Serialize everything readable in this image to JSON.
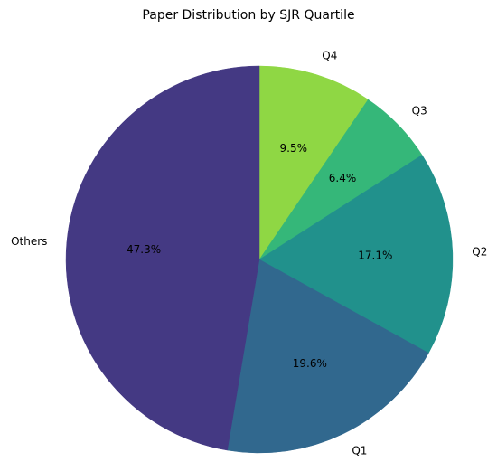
{
  "chart_data": {
    "type": "pie",
    "title": "Paper Distribution by SJR Quartile",
    "categories": [
      "Q4",
      "Q3",
      "Q2",
      "Q1",
      "Others"
    ],
    "values": [
      9.5,
      6.4,
      17.1,
      19.6,
      47.3
    ],
    "value_labels": [
      "9.5%",
      "6.4%",
      "17.1%",
      "19.6%",
      "47.3%"
    ],
    "colors": [
      "#8fd744",
      "#35b779",
      "#21918c",
      "#31688e",
      "#443983"
    ],
    "start_angle_deg": 90,
    "direction": "clockwise",
    "legend": "none"
  }
}
